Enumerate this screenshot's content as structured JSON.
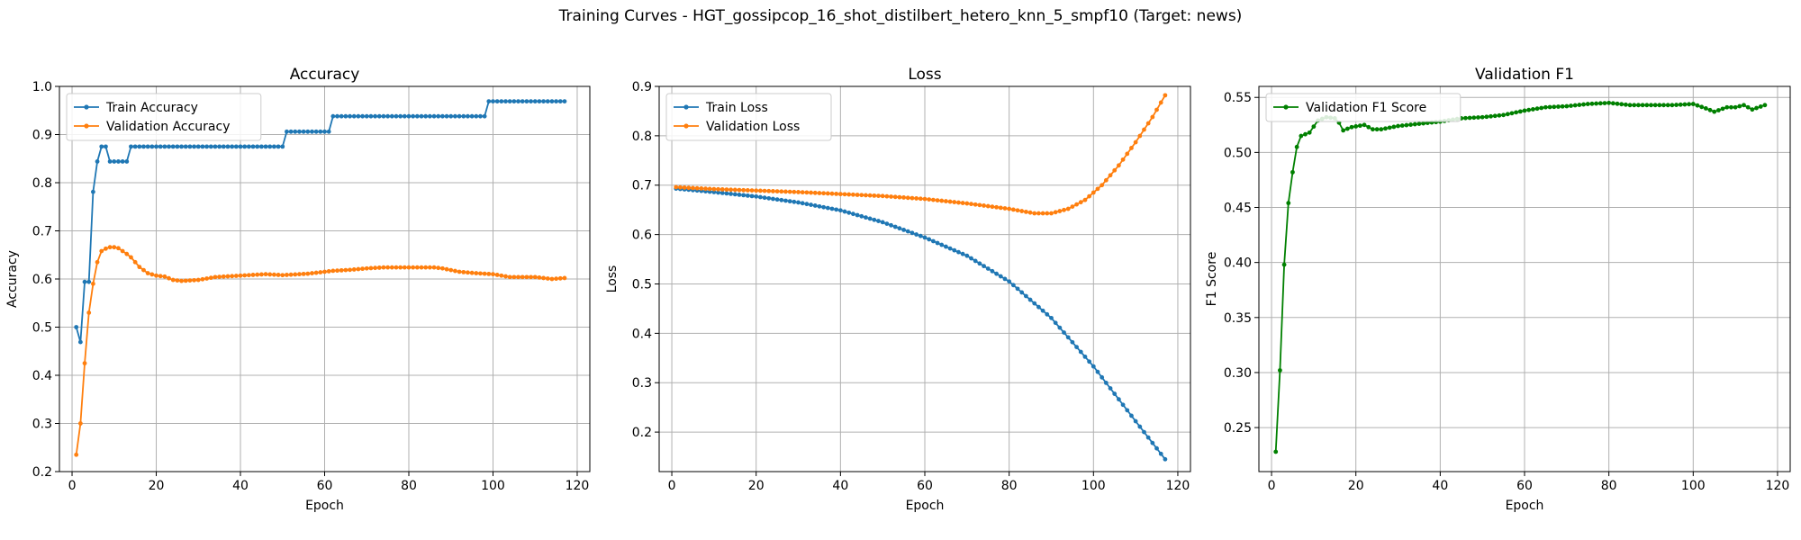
{
  "figure": {
    "title": "Training Curves - HGT_gossipcop_16_shot_distilbert_hetero_knn_5_smpf10 (Target: news)"
  },
  "colors": {
    "blue": "#1f77b4",
    "orange": "#ff7f0e",
    "green": "#008000",
    "grid": "#b0b0b0"
  },
  "chart_data": [
    {
      "type": "line",
      "title": "Accuracy",
      "xlabel": "Epoch",
      "ylabel": "Accuracy",
      "xlim": [
        -3,
        123
      ],
      "ylim": [
        0.2,
        1.0
      ],
      "xticks": [
        0,
        20,
        40,
        60,
        80,
        100,
        120
      ],
      "yticks": [
        0.2,
        0.3,
        0.4,
        0.5,
        0.6,
        0.7,
        0.8,
        0.9,
        1.0
      ],
      "ytick_labels": [
        "0.2",
        "0.3",
        "0.4",
        "0.5",
        "0.6",
        "0.7",
        "0.8",
        "0.9",
        "1.0"
      ],
      "grid": true,
      "legend_position": "upper-left",
      "series": [
        {
          "name": "Train Accuracy",
          "color": "#1f77b4",
          "x": [
            1,
            117
          ],
          "breakpoints": [
            [
              1,
              0.5
            ],
            [
              2,
              0.469
            ],
            [
              3,
              0.594
            ],
            [
              4,
              0.594
            ],
            [
              5,
              0.781
            ],
            [
              6,
              0.844
            ],
            [
              7,
              0.875
            ],
            [
              8,
              0.875
            ],
            [
              9,
              0.844
            ],
            [
              13,
              0.844
            ],
            [
              14,
              0.875
            ],
            [
              50,
              0.875
            ],
            [
              51,
              0.906
            ],
            [
              61,
              0.906
            ],
            [
              62,
              0.938
            ],
            [
              98,
              0.938
            ],
            [
              99,
              0.969
            ],
            [
              117,
              0.969
            ]
          ]
        },
        {
          "name": "Validation Accuracy",
          "color": "#ff7f0e",
          "x": [
            1,
            117
          ],
          "breakpoints": [
            [
              1,
              0.235
            ],
            [
              2,
              0.3
            ],
            [
              3,
              0.425
            ],
            [
              4,
              0.53
            ],
            [
              5,
              0.59
            ],
            [
              6,
              0.635
            ],
            [
              7,
              0.658
            ],
            [
              8,
              0.663
            ],
            [
              9,
              0.666
            ],
            [
              10,
              0.666
            ],
            [
              11,
              0.664
            ],
            [
              12,
              0.658
            ],
            [
              13,
              0.652
            ],
            [
              14,
              0.645
            ],
            [
              15,
              0.635
            ],
            [
              16,
              0.625
            ],
            [
              18,
              0.612
            ],
            [
              20,
              0.607
            ],
            [
              22,
              0.605
            ],
            [
              24,
              0.598
            ],
            [
              26,
              0.596
            ],
            [
              30,
              0.598
            ],
            [
              34,
              0.604
            ],
            [
              40,
              0.607
            ],
            [
              46,
              0.61
            ],
            [
              50,
              0.608
            ],
            [
              56,
              0.611
            ],
            [
              62,
              0.617
            ],
            [
              66,
              0.619
            ],
            [
              70,
              0.622
            ],
            [
              74,
              0.624
            ],
            [
              80,
              0.624
            ],
            [
              86,
              0.624
            ],
            [
              88,
              0.622
            ],
            [
              92,
              0.615
            ],
            [
              96,
              0.612
            ],
            [
              100,
              0.61
            ],
            [
              104,
              0.604
            ],
            [
              110,
              0.604
            ],
            [
              114,
              0.6
            ],
            [
              117,
              0.602
            ]
          ]
        }
      ]
    },
    {
      "type": "line",
      "title": "Loss",
      "xlabel": "Epoch",
      "ylabel": "Loss",
      "xlim": [
        -3,
        123
      ],
      "ylim": [
        0.12,
        0.9
      ],
      "xticks": [
        0,
        20,
        40,
        60,
        80,
        100,
        120
      ],
      "yticks": [
        0.2,
        0.3,
        0.4,
        0.5,
        0.6,
        0.7,
        0.8,
        0.9
      ],
      "ytick_labels": [
        "0.2",
        "0.3",
        "0.4",
        "0.5",
        "0.6",
        "0.7",
        "0.8",
        "0.9"
      ],
      "grid": true,
      "legend_position": "upper-left",
      "series": [
        {
          "name": "Train Loss",
          "color": "#1f77b4",
          "x": [
            1,
            117
          ],
          "breakpoints": [
            [
              1,
              0.693
            ],
            [
              10,
              0.686
            ],
            [
              20,
              0.677
            ],
            [
              30,
              0.665
            ],
            [
              40,
              0.649
            ],
            [
              50,
              0.625
            ],
            [
              60,
              0.594
            ],
            [
              70,
              0.557
            ],
            [
              80,
              0.505
            ],
            [
              90,
              0.431
            ],
            [
              100,
              0.333
            ],
            [
              110,
              0.222
            ],
            [
              117,
              0.145
            ]
          ]
        },
        {
          "name": "Validation Loss",
          "color": "#ff7f0e",
          "x": [
            1,
            117
          ],
          "breakpoints": [
            [
              1,
              0.696
            ],
            [
              10,
              0.692
            ],
            [
              20,
              0.689
            ],
            [
              30,
              0.686
            ],
            [
              40,
              0.682
            ],
            [
              50,
              0.678
            ],
            [
              60,
              0.672
            ],
            [
              70,
              0.663
            ],
            [
              80,
              0.652
            ],
            [
              86,
              0.643
            ],
            [
              90,
              0.643
            ],
            [
              94,
              0.652
            ],
            [
              98,
              0.67
            ],
            [
              102,
              0.7
            ],
            [
              106,
              0.74
            ],
            [
              110,
              0.787
            ],
            [
              114,
              0.838
            ],
            [
              117,
              0.882
            ]
          ]
        }
      ]
    },
    {
      "type": "line",
      "title": "Validation F1",
      "xlabel": "Epoch",
      "ylabel": "F1 Score",
      "xlim": [
        -3,
        123
      ],
      "ylim": [
        0.21,
        0.56
      ],
      "xticks": [
        0,
        20,
        40,
        60,
        80,
        100,
        120
      ],
      "yticks": [
        0.25,
        0.3,
        0.35,
        0.4,
        0.45,
        0.5,
        0.55
      ],
      "ytick_labels": [
        "0.25",
        "0.30",
        "0.35",
        "0.40",
        "0.45",
        "0.50",
        "0.55"
      ],
      "grid": true,
      "legend_position": "upper-left",
      "series": [
        {
          "name": "Validation F1 Score",
          "color": "#008000",
          "x": [
            1,
            117
          ],
          "breakpoints": [
            [
              1,
              0.228
            ],
            [
              2,
              0.302
            ],
            [
              3,
              0.398
            ],
            [
              4,
              0.454
            ],
            [
              5,
              0.482
            ],
            [
              6,
              0.505
            ],
            [
              7,
              0.515
            ],
            [
              9,
              0.518
            ],
            [
              11,
              0.529
            ],
            [
              13,
              0.532
            ],
            [
              15,
              0.531
            ],
            [
              16,
              0.527
            ],
            [
              17,
              0.52
            ],
            [
              19,
              0.523
            ],
            [
              22,
              0.525
            ],
            [
              24,
              0.521
            ],
            [
              26,
              0.521
            ],
            [
              30,
              0.524
            ],
            [
              35,
              0.526
            ],
            [
              40,
              0.528
            ],
            [
              45,
              0.531
            ],
            [
              50,
              0.532
            ],
            [
              55,
              0.534
            ],
            [
              60,
              0.538
            ],
            [
              65,
              0.541
            ],
            [
              70,
              0.542
            ],
            [
              75,
              0.544
            ],
            [
              80,
              0.545
            ],
            [
              85,
              0.543
            ],
            [
              90,
              0.543
            ],
            [
              95,
              0.543
            ],
            [
              100,
              0.544
            ],
            [
              103,
              0.54
            ],
            [
              105,
              0.537
            ],
            [
              108,
              0.541
            ],
            [
              110,
              0.541
            ],
            [
              112,
              0.543
            ],
            [
              114,
              0.539
            ],
            [
              117,
              0.543
            ]
          ]
        }
      ]
    }
  ]
}
